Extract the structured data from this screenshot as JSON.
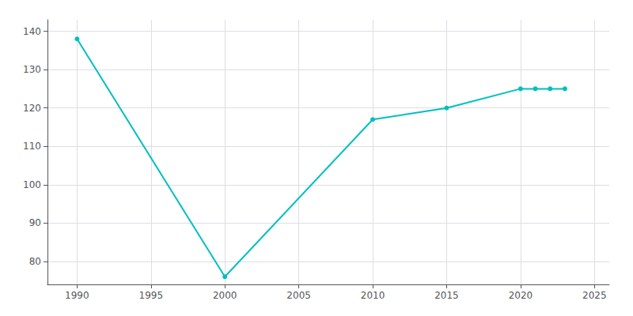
{
  "chart_data": {
    "type": "line",
    "x": [
      1990,
      2000,
      2010,
      2015,
      2020,
      2021,
      2022,
      2023
    ],
    "values": [
      138,
      76,
      117,
      120,
      125,
      125,
      125,
      125
    ],
    "color": "#00BFBF",
    "marker": "circle",
    "xlim": [
      1988,
      2026
    ],
    "ylim": [
      74,
      143
    ],
    "xticks": [
      1990,
      1995,
      2000,
      2005,
      2010,
      2015,
      2020,
      2025
    ],
    "yticks": [
      80,
      90,
      100,
      110,
      120,
      130,
      140
    ],
    "grid": true
  }
}
